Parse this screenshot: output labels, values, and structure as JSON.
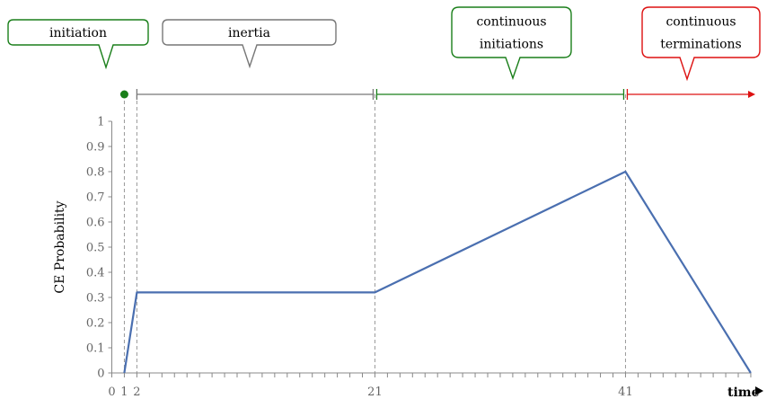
{
  "chart_data": {
    "type": "line",
    "ylabel": "CE Probability",
    "xlabel": "time",
    "ylim": [
      0,
      1
    ],
    "xlim": [
      0,
      51
    ],
    "yticks": [
      "0",
      "0.1",
      "0.2",
      "0.3",
      "0.4",
      "0.5",
      "0.6",
      "0.7",
      "0.8",
      "0.9",
      "1"
    ],
    "xticks": [
      "0",
      "1",
      "2",
      "21",
      "41"
    ],
    "x": [
      1,
      2,
      21,
      41,
      51
    ],
    "y": [
      0,
      0.32,
      0.32,
      0.8,
      0
    ],
    "line_color": "#4a6fb0",
    "vlines": [
      1,
      2,
      21,
      41
    ],
    "phases": [
      {
        "label": "initiation",
        "color": "#1a7f1a"
      },
      {
        "label": "inertia",
        "color": "#777777"
      },
      {
        "label": "continuous initiations",
        "lines": [
          "continuous",
          "initiations"
        ],
        "color": "#1a7f1a"
      },
      {
        "label": "continuous terminations",
        "lines": [
          "continuous",
          "terminations"
        ],
        "color": "#dd1111"
      }
    ]
  }
}
